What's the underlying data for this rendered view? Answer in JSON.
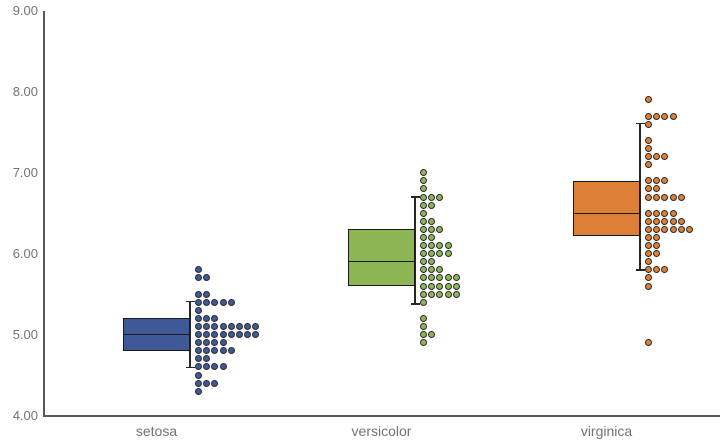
{
  "chart_data": {
    "type": "box-dot",
    "title": "",
    "categories": [
      "setosa",
      "versicolor",
      "virginica"
    ],
    "ylim": [
      4,
      9
    ],
    "grid": false,
    "legend": "none",
    "y_axis": {
      "tick_labels": [
        "9.00",
        "8.00",
        "7.00",
        "6.00",
        "5.00",
        "4.00"
      ],
      "tick_values": [
        9,
        8,
        7,
        6,
        5,
        4
      ]
    },
    "axis_color": "#595959",
    "label_color": "#737373",
    "series": [
      {
        "name": "setosa",
        "color": "#3F5898",
        "box": {
          "whisker_low": 4.59,
          "q1": 4.8,
          "median": 5.0,
          "q3": 5.2,
          "whisker_high": 5.41
        },
        "points": [
          [
            4.3,
            1
          ],
          [
            4.4,
            3
          ],
          [
            4.5,
            1
          ],
          [
            4.6,
            4
          ],
          [
            4.7,
            2
          ],
          [
            4.8,
            5
          ],
          [
            4.9,
            4
          ],
          [
            5.0,
            8
          ],
          [
            5.1,
            8
          ],
          [
            5.2,
            3
          ],
          [
            5.3,
            1
          ],
          [
            5.4,
            5
          ],
          [
            5.5,
            2
          ],
          [
            5.7,
            2
          ],
          [
            5.8,
            1
          ]
        ]
      },
      {
        "name": "versicolor",
        "color": "#8CB654",
        "box": {
          "whisker_low": 5.38,
          "q1": 5.6,
          "median": 5.9,
          "q3": 6.3,
          "whisker_high": 6.7
        },
        "points": [
          [
            4.9,
            1
          ],
          [
            5.0,
            2
          ],
          [
            5.1,
            1
          ],
          [
            5.2,
            1
          ],
          [
            5.4,
            1
          ],
          [
            5.5,
            5
          ],
          [
            5.6,
            5
          ],
          [
            5.7,
            5
          ],
          [
            5.8,
            3
          ],
          [
            5.9,
            2
          ],
          [
            6.0,
            4
          ],
          [
            6.1,
            4
          ],
          [
            6.2,
            2
          ],
          [
            6.3,
            3
          ],
          [
            6.4,
            2
          ],
          [
            6.5,
            1
          ],
          [
            6.6,
            2
          ],
          [
            6.7,
            3
          ],
          [
            6.8,
            1
          ],
          [
            6.9,
            1
          ],
          [
            7.0,
            1
          ]
        ]
      },
      {
        "name": "virginica",
        "color": "#DB8035",
        "box": {
          "whisker_low": 5.8,
          "q1": 6.22,
          "median": 6.5,
          "q3": 6.9,
          "whisker_high": 7.61
        },
        "points": [
          [
            4.9,
            1
          ],
          [
            5.6,
            1
          ],
          [
            5.7,
            1
          ],
          [
            5.8,
            3
          ],
          [
            5.9,
            1
          ],
          [
            6.0,
            2
          ],
          [
            6.1,
            2
          ],
          [
            6.2,
            2
          ],
          [
            6.3,
            6
          ],
          [
            6.4,
            5
          ],
          [
            6.5,
            4
          ],
          [
            6.7,
            5
          ],
          [
            6.8,
            2
          ],
          [
            6.9,
            3
          ],
          [
            7.1,
            1
          ],
          [
            7.2,
            3
          ],
          [
            7.3,
            1
          ],
          [
            7.4,
            1
          ],
          [
            7.6,
            1
          ],
          [
            7.7,
            4
          ],
          [
            7.9,
            1
          ]
        ]
      }
    ]
  }
}
